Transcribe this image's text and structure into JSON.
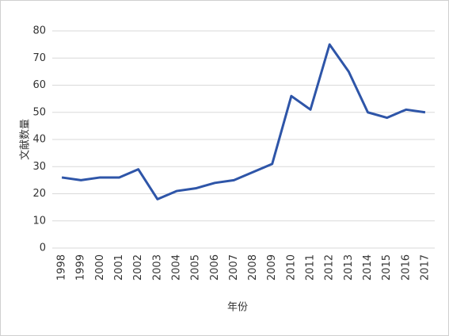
{
  "chart_data": {
    "type": "line",
    "x_label": "年份",
    "y_label": "文献数量",
    "categories": [
      "1998",
      "1999",
      "2000",
      "2001",
      "2002",
      "2003",
      "2004",
      "2005",
      "2006",
      "2007",
      "2008",
      "2009",
      "2010",
      "2011",
      "2012",
      "2013",
      "2014",
      "2015",
      "2016",
      "2017"
    ],
    "series": [
      {
        "color": "#2e55a8",
        "values": [
          26,
          25,
          26,
          26,
          29,
          18,
          21,
          22,
          24,
          25,
          28,
          31,
          56,
          51,
          75,
          65,
          50,
          48,
          51,
          50
        ]
      }
    ],
    "ylim": [
      0,
      80
    ],
    "yticks": [
      0,
      10,
      20,
      30,
      40,
      50,
      60,
      70,
      80
    ],
    "grid": true
  }
}
